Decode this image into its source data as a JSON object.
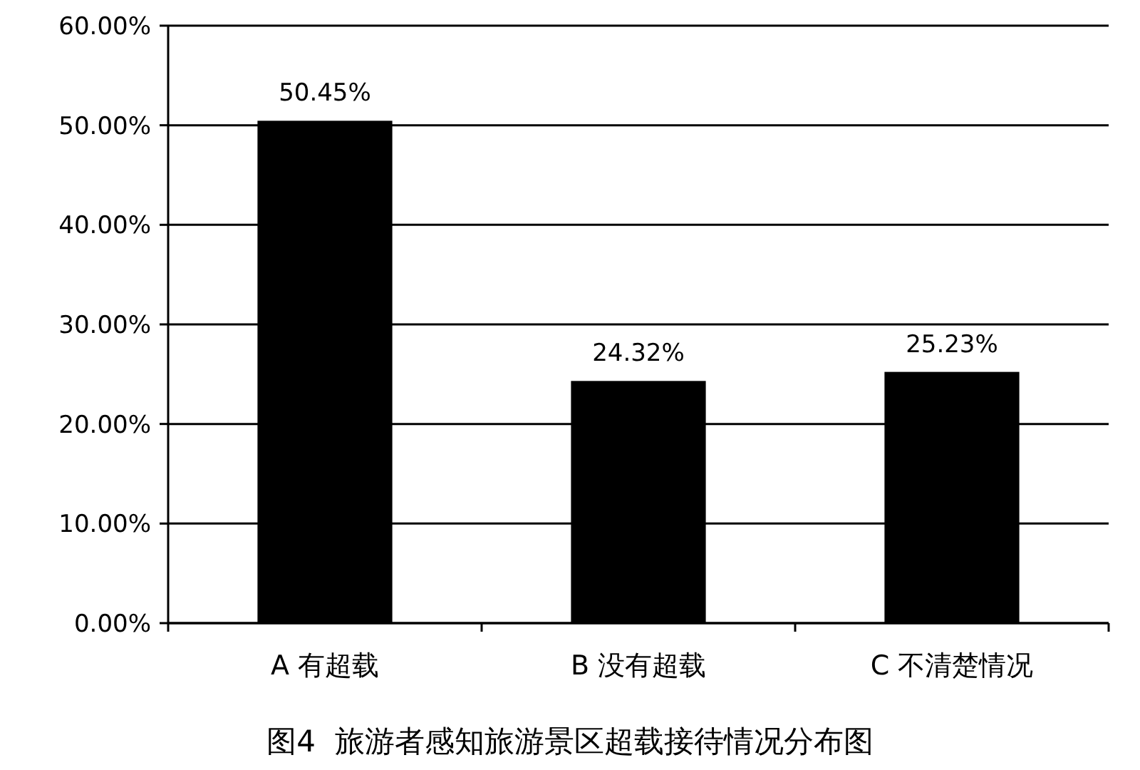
{
  "chart_data": {
    "type": "bar",
    "title": "图4  旅游者感知旅游景区超载接待情况分布图",
    "categories": [
      "A 有超载",
      "B 没有超载",
      "C 不清楚情况"
    ],
    "values": [
      50.45,
      24.32,
      25.23
    ],
    "color": "#000000",
    "value_labels": [
      "50.45%",
      "24.32%",
      "25.23%"
    ],
    "ylim": [
      0,
      60
    ],
    "yticks": [
      {
        "value": 0,
        "label": "0.00%"
      },
      {
        "value": 10,
        "label": "10.00%"
      },
      {
        "value": 20,
        "label": "20.00%"
      },
      {
        "value": 30,
        "label": "30.00%"
      },
      {
        "value": 40,
        "label": "40.00%"
      },
      {
        "value": 50,
        "label": "50.00%"
      },
      {
        "value": 60,
        "label": "60.00%"
      }
    ],
    "grid": "y"
  }
}
